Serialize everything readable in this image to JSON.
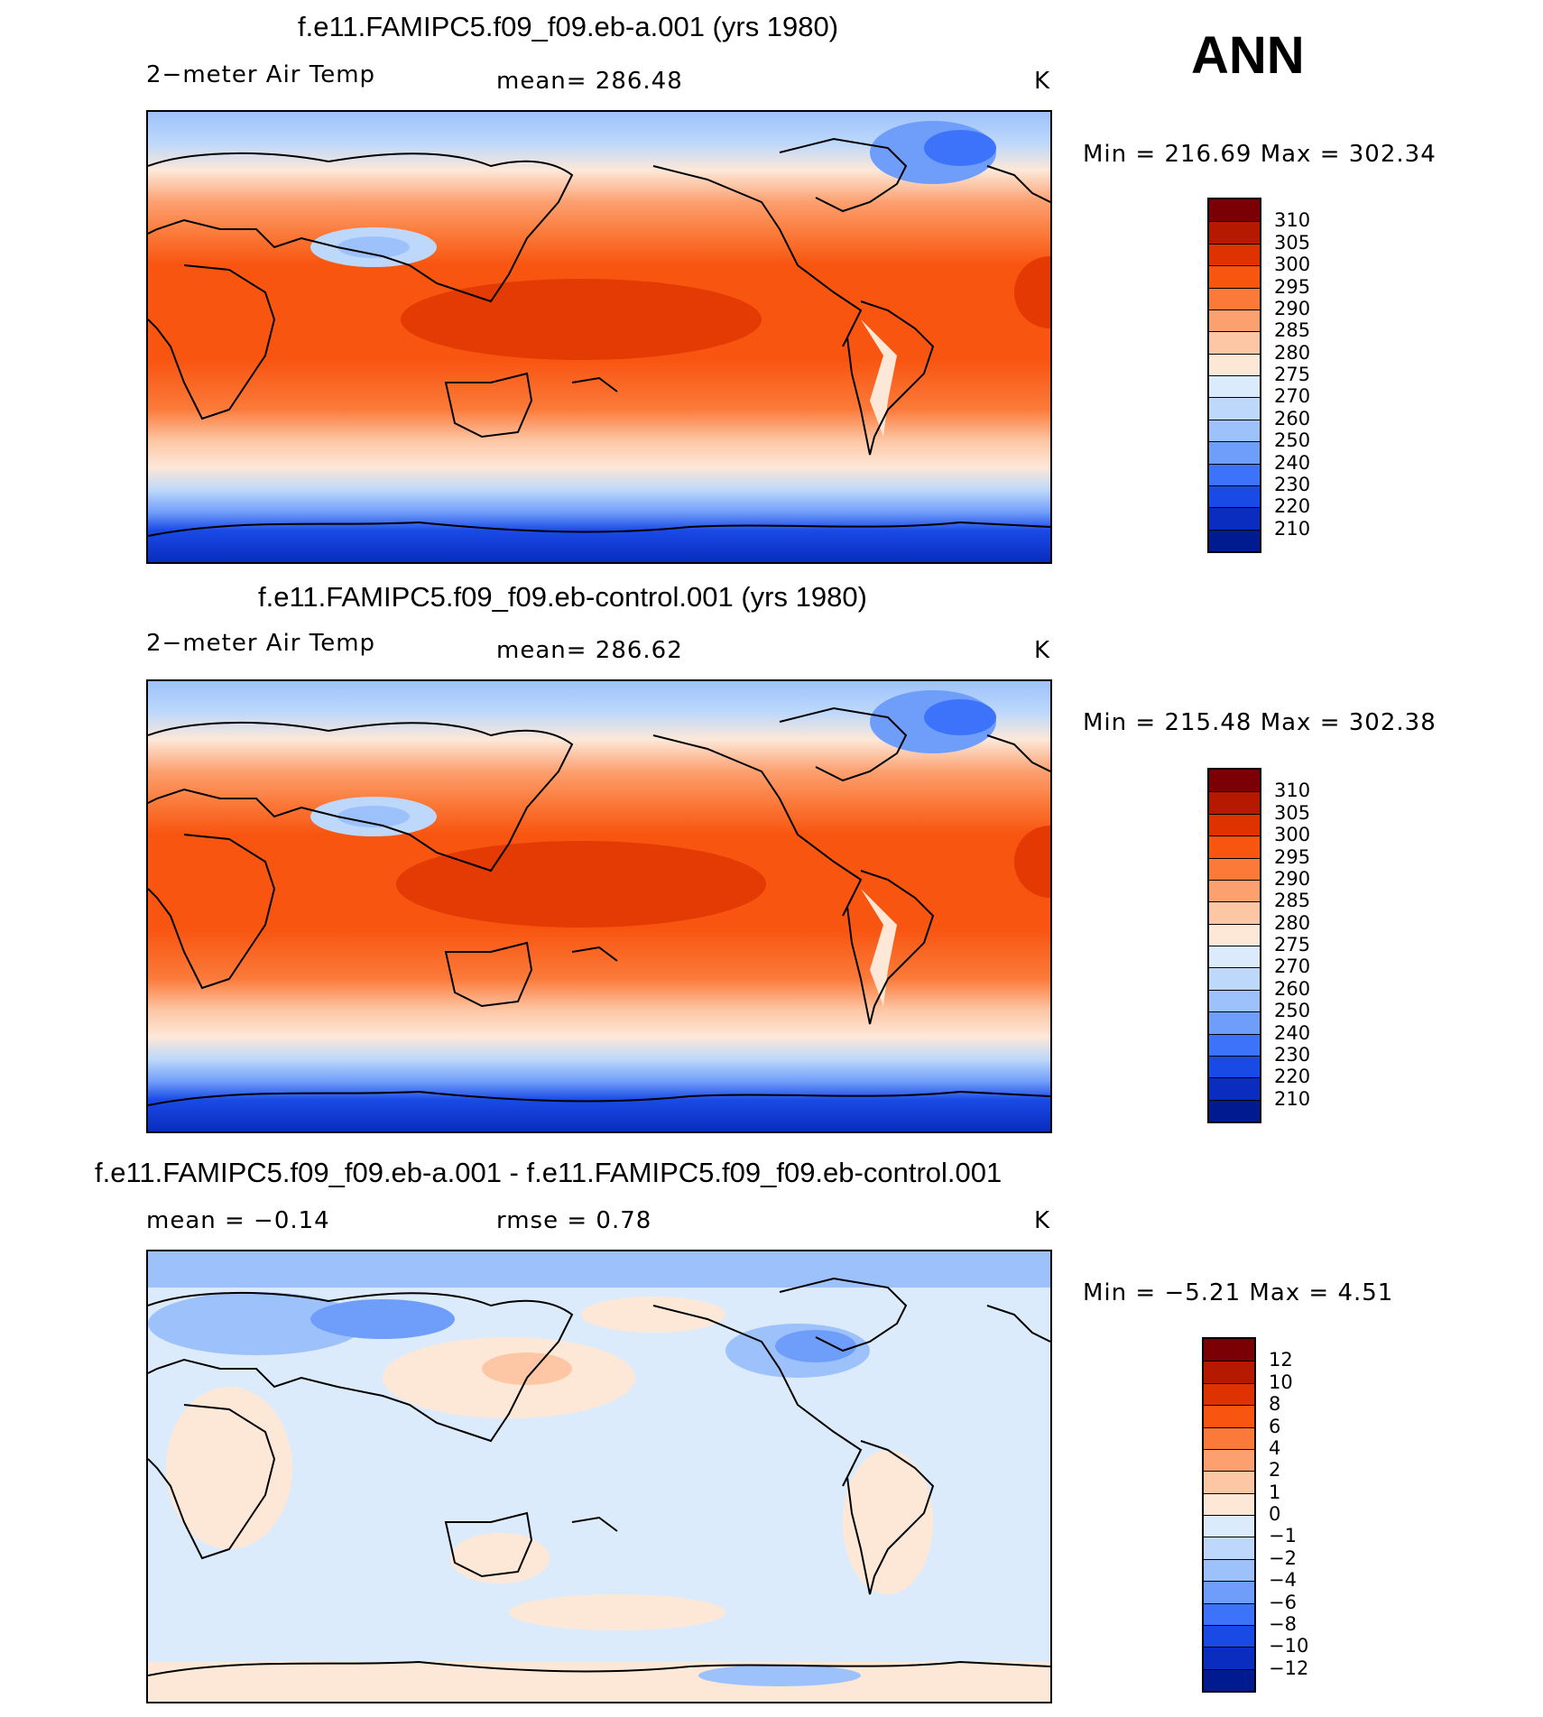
{
  "season": "ANN",
  "panels": [
    {
      "title": "f.e11.FAMIPC5.f09_f09.eb-a.001 (yrs 1980)",
      "left_label": "2−meter Air Temp",
      "center_label": "mean=  286.48",
      "units": "K",
      "minmax": "Min  =  216.69  Max  =  302.34",
      "kind": "abs"
    },
    {
      "title": "f.e11.FAMIPC5.f09_f09.eb-control.001 (yrs 1980)",
      "left_label": "2−meter Air Temp",
      "center_label": "mean=  286.62",
      "units": "K",
      "minmax": "Min  =  215.48  Max  =  302.38",
      "kind": "abs"
    },
    {
      "title": "f.e11.FAMIPC5.f09_f09.eb-a.001 - f.e11.FAMIPC5.f09_f09.eb-control.001",
      "left_label": "mean =    −0.14",
      "center_label": "rmse =     0.78",
      "units": "K",
      "minmax": "Min  =    −5.21  Max  =     4.51",
      "kind": "diff"
    }
  ],
  "colorbars": {
    "abs": {
      "labels": [
        "310",
        "305",
        "300",
        "295",
        "290",
        "285",
        "280",
        "275",
        "270",
        "260",
        "250",
        "240",
        "230",
        "220",
        "210"
      ],
      "colors": [
        "#7a0005",
        "#b51a00",
        "#de3200",
        "#f85510",
        "#fb7a3a",
        "#fca070",
        "#fdc6a4",
        "#fde8d8",
        "#dcebfb",
        "#bdd8fb",
        "#9dc2fb",
        "#6f9dfa",
        "#3d73fa",
        "#1a4ae6",
        "#0a2cbf",
        "#001a8f"
      ]
    },
    "diff": {
      "labels": [
        "12",
        "10",
        "8",
        "6",
        "4",
        "2",
        "1",
        "0",
        "−1",
        "−2",
        "−4",
        "−6",
        "−8",
        "−10",
        "−12"
      ],
      "colors": [
        "#7a0005",
        "#b51a00",
        "#de3200",
        "#f85510",
        "#fb7a3a",
        "#fca070",
        "#fdc6a4",
        "#fde8d8",
        "#dcebfb",
        "#bdd8fb",
        "#9dc2fb",
        "#6f9dfa",
        "#3d73fa",
        "#1a4ae6",
        "#0a2cbf",
        "#001a8f"
      ]
    }
  }
}
